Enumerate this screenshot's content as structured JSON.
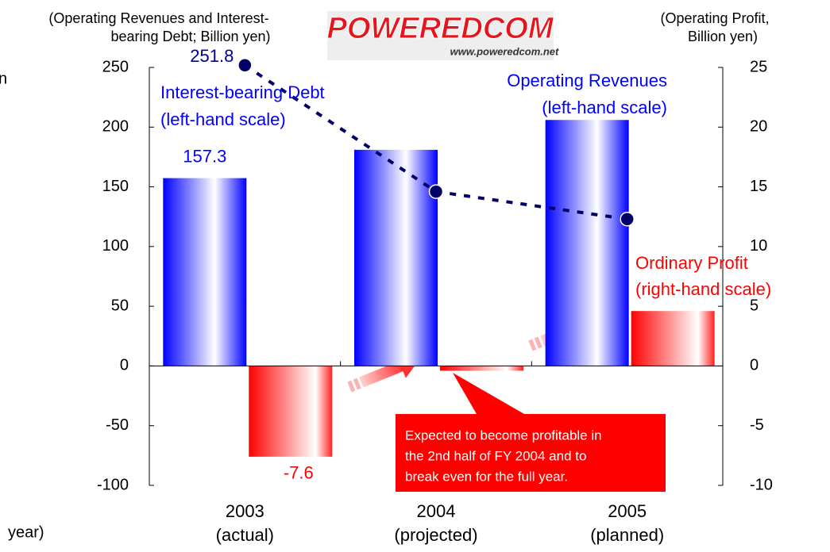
{
  "chart_data": {
    "type": "bar",
    "logo": {
      "name": "POWEREDCOM",
      "url": "www.poweredcom.net"
    },
    "y_axis_label": [
      "(Operating Revenues and Interest-",
      "bearing Debt; Billion yen)"
    ],
    "y2_axis_label": [
      "(Operating Profit,",
      "Billion yen)"
    ],
    "x_axis_label": "year)",
    "annotations": [
      "n"
    ],
    "categories": [
      "2003",
      "2004",
      "2005"
    ],
    "category_notes": [
      "(actual)",
      "(projected)",
      "(planned)"
    ],
    "ylim": [
      -100,
      250
    ],
    "yticks": [
      -100,
      -50,
      0,
      50,
      100,
      150,
      200,
      250
    ],
    "y2lim": [
      -10,
      25
    ],
    "y2ticks": [
      -10,
      -5,
      0,
      5,
      10,
      15,
      20,
      25
    ],
    "series": [
      {
        "name": "Operating Revenues",
        "note": "(left-hand scale)",
        "type": "bar",
        "color": "#0000ff",
        "values": [
          157.3,
          181,
          206
        ],
        "value_labels": [
          "157.3",
          null,
          null
        ]
      },
      {
        "name": "Ordinary Profit",
        "note": "(right-hand scale)",
        "type": "bar",
        "axis": "y2",
        "color": "#ff0000",
        "values": [
          -7.6,
          -0.4,
          4.6
        ],
        "value_labels": [
          "-7.6",
          null,
          null
        ]
      },
      {
        "name": "Interest-bearing Debt",
        "note": "(left-hand scale)",
        "type": "line",
        "color": "#000066",
        "values": [
          251.8,
          146,
          123
        ],
        "value_labels": [
          "251.8",
          null,
          null
        ]
      }
    ],
    "callout": [
      "Expected to become profitable in",
      "the 2nd half of FY 2004 and to",
      "break even for the full year."
    ]
  }
}
